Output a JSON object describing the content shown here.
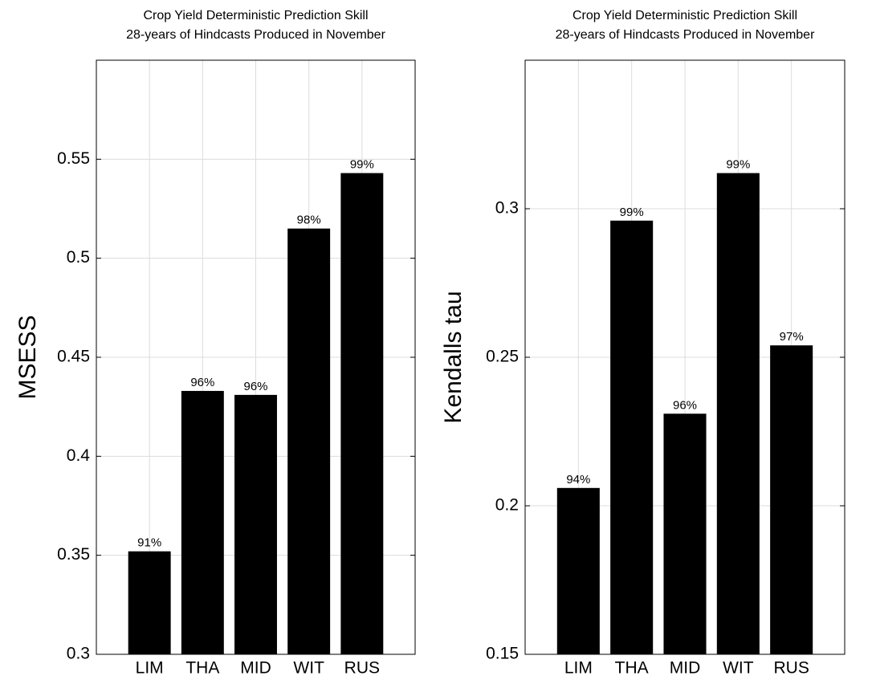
{
  "chart_data": [
    {
      "type": "bar",
      "title": [
        "Crop Yield Deterministic Prediction Skill",
        "28-years of Hindcasts Produced in November"
      ],
      "y_label": "MSESS",
      "categories": [
        "LIM",
        "THA",
        "MID",
        "WIT",
        "RUS"
      ],
      "values": [
        0.352,
        0.433,
        0.431,
        0.515,
        0.543
      ],
      "significance_labels": [
        "91%",
        "96%",
        "96%",
        "98%",
        "99%"
      ],
      "color": "#000000",
      "ylim": [
        0.3,
        0.6
      ],
      "yticks": [
        0.3,
        0.35,
        0.4,
        0.45,
        0.5,
        0.55
      ],
      "grid": true
    },
    {
      "type": "bar",
      "title": [
        "Crop Yield Deterministic Prediction Skill",
        "28-years of Hindcasts Produced in November"
      ],
      "y_label": "Kendalls tau",
      "categories": [
        "LIM",
        "THA",
        "MID",
        "WIT",
        "RUS"
      ],
      "values": [
        0.206,
        0.296,
        0.231,
        0.312,
        0.254
      ],
      "significance_labels": [
        "94%",
        "99%",
        "96%",
        "99%",
        "97%"
      ],
      "color": "#000000",
      "ylim": [
        0.15,
        0.35
      ],
      "yticks": [
        0.15,
        0.2,
        0.25,
        0.3
      ],
      "grid": true
    }
  ]
}
